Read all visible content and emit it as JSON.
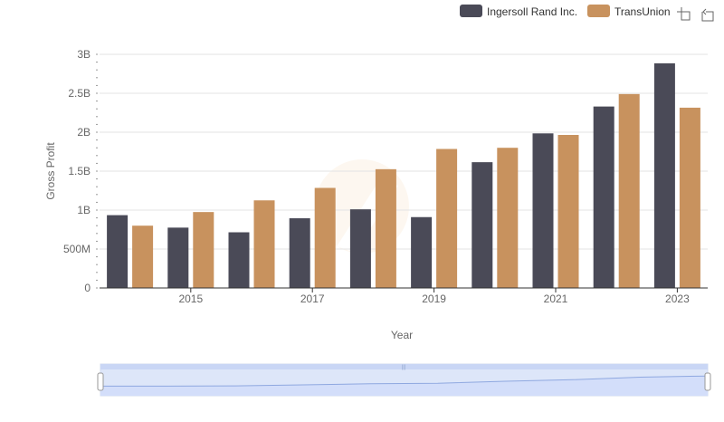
{
  "chart_data": {
    "type": "bar",
    "title": "",
    "xlabel": "Year",
    "ylabel": "Gross Profit",
    "categories": [
      "2014",
      "2015",
      "2016",
      "2017",
      "2018",
      "2019",
      "2020",
      "2021",
      "2022",
      "2023"
    ],
    "x_tick_labels": [
      "2015",
      "2017",
      "2019",
      "2021",
      "2023"
    ],
    "y_tick_labels": [
      "0",
      "500M",
      "1B",
      "1.5B",
      "2B",
      "2.5B",
      "3B"
    ],
    "ylim": [
      0,
      3000000000
    ],
    "grid": true,
    "legend_position": "top-right",
    "series": [
      {
        "name": "Ingersoll Rand Inc.",
        "color": "#4a4a57",
        "values": [
          935000000,
          775000000,
          715000000,
          895000000,
          1010000000,
          910000000,
          1615000000,
          1985000000,
          2330000000,
          2885000000
        ]
      },
      {
        "name": "TransUnion",
        "color": "#c8925e",
        "values": [
          800000000,
          975000000,
          1125000000,
          1285000000,
          1525000000,
          1785000000,
          1800000000,
          1965000000,
          2490000000,
          2315000000
        ]
      }
    ]
  },
  "toolbox": {
    "zoom_icon": "zoom-select-icon",
    "restore_icon": "restore-icon"
  }
}
